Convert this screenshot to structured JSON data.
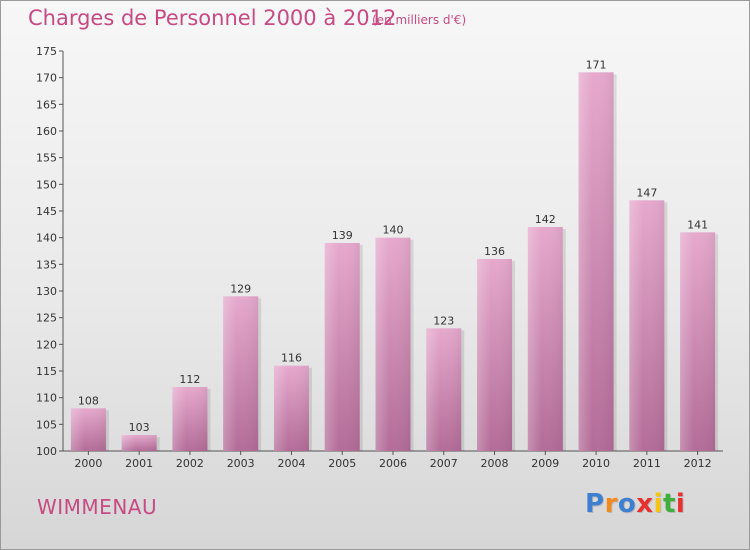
{
  "title": "Charges de Personnel 2000 à 2012",
  "subtitle": "(en milliers d'€)",
  "commune": "WIMMENAU",
  "logo": {
    "letters": [
      "P",
      "r",
      "o",
      "x",
      "i",
      "t",
      "i"
    ],
    "colors": [
      "#3f7fd0",
      "#f08a1c",
      "#3f7fd0",
      "#e8312f",
      "#f7c316",
      "#3fae3a",
      "#e8312f"
    ]
  },
  "colors": {
    "title": "#c84a82",
    "bar_top": "#e6a9cd",
    "bar_bottom": "#b36c98",
    "axis": "#555555"
  },
  "chart_data": {
    "type": "bar",
    "title": "Charges de Personnel 2000 à 2012",
    "subtitle": "(en milliers d'€)",
    "categories": [
      "2000",
      "2001",
      "2002",
      "2003",
      "2004",
      "2005",
      "2006",
      "2007",
      "2008",
      "2009",
      "2010",
      "2011",
      "2012"
    ],
    "values": [
      108,
      103,
      112,
      129,
      116,
      139,
      140,
      123,
      136,
      142,
      171,
      147,
      141
    ],
    "xlabel": "",
    "ylabel": "",
    "ylim": [
      100,
      175
    ],
    "yticks": [
      100,
      105,
      110,
      115,
      120,
      125,
      130,
      135,
      140,
      145,
      150,
      155,
      160,
      165,
      170,
      175
    ],
    "grid": false,
    "legend": "none"
  }
}
